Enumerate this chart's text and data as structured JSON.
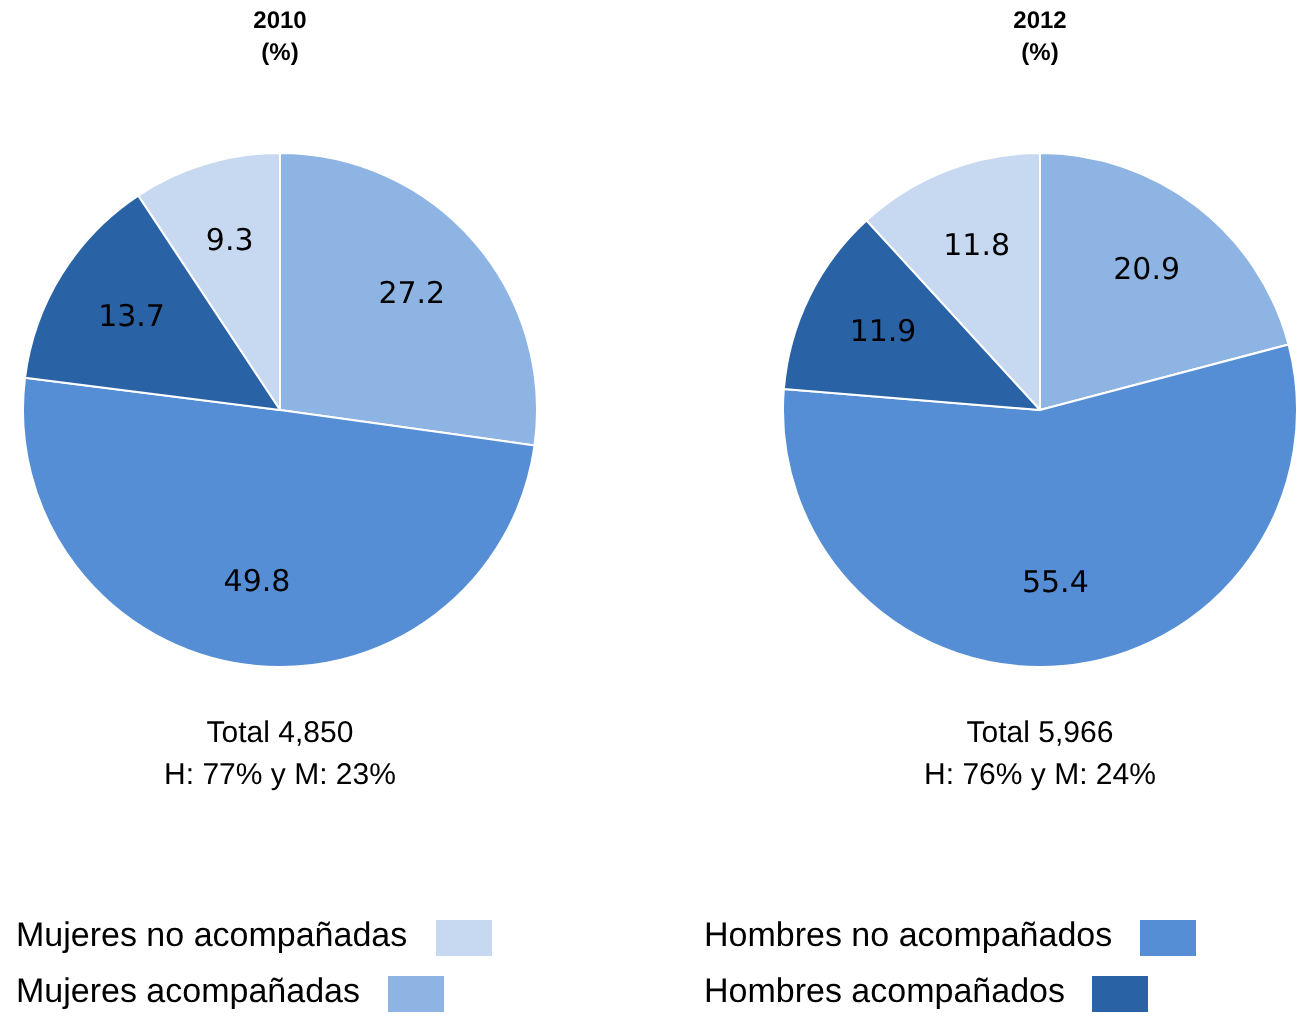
{
  "chart_data": [
    {
      "type": "pie",
      "title": "2010",
      "subtitle": "(%)",
      "categories": [
        "Mujeres no acompañadas",
        "Mujeres acompañadas",
        "Hombres no acompañados",
        "Hombres acompañados"
      ],
      "values": [
        9.3,
        27.2,
        49.8,
        13.7
      ],
      "colors": [
        "#c6d9f1",
        "#8eb4e3",
        "#558ed5",
        "#2a62a6"
      ],
      "data_labels": true,
      "legend": "bottom",
      "annotations": [
        "Total 4,850",
        "H: 77% y M: 23%"
      ]
    },
    {
      "type": "pie",
      "title": "2012",
      "subtitle": "(%)",
      "categories": [
        null,
        null,
        null,
        null
      ],
      "values": [
        11.8,
        20.9,
        55.4,
        11.9
      ],
      "colors": [
        "#c6d9f1",
        "#8eb4e3",
        "#558ed5",
        "#2a62a6"
      ],
      "data_labels": true,
      "annotations": [
        "Total 5,966",
        "H: 76% y M: 24%"
      ]
    }
  ]
}
